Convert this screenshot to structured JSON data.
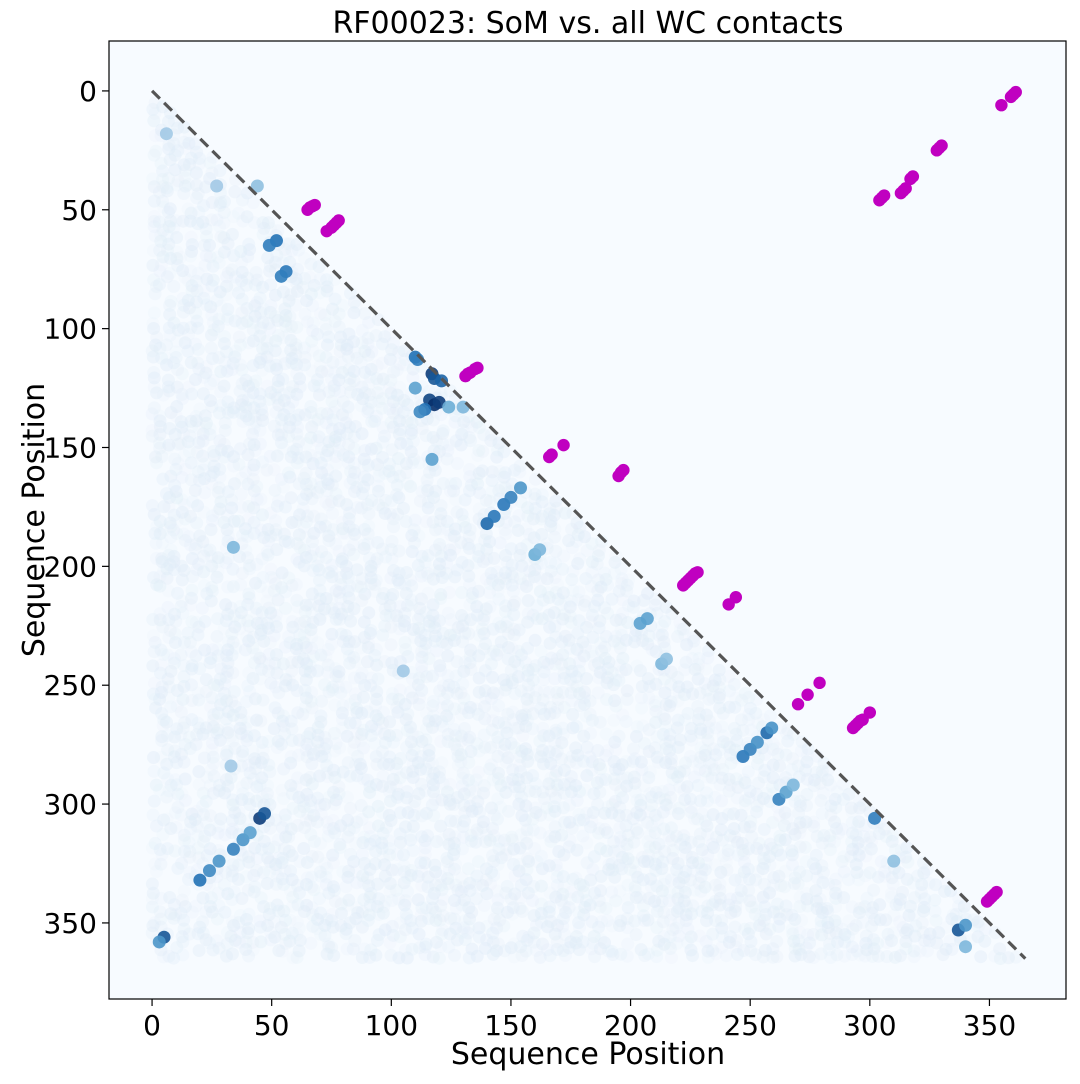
{
  "chart_data": {
    "type": "scatter",
    "title": "RF00023: SoM vs. all WC contacts",
    "xlabel": "Sequence Position",
    "ylabel": "Sequence Position",
    "xlim": [
      -18,
      382
    ],
    "ylim": [
      382,
      -21
    ],
    "y_inverted": true,
    "xticks": [
      0,
      50,
      100,
      150,
      200,
      250,
      300,
      350
    ],
    "yticks": [
      0,
      50,
      100,
      150,
      200,
      250,
      300,
      350
    ],
    "sequence_length": 365,
    "grid": false,
    "legend": false,
    "diagonal_line": {
      "x": [
        0,
        365
      ],
      "y": [
        0,
        365
      ],
      "style": "dashed",
      "color": "#555555"
    },
    "colors": {
      "background": "#f7fbff",
      "faint": "#deebf7",
      "medium": "#9ecae1",
      "strong": "#4292c6",
      "darkest": "#08306b",
      "annotation": "#c000c0"
    },
    "series": [
      {
        "colormap": "Blues",
        "points": [
          {
            "x": 52,
            "y": 63,
            "v": 0.75
          },
          {
            "x": 49,
            "y": 65,
            "v": 0.7
          },
          {
            "x": 56,
            "y": 76,
            "v": 0.72
          },
          {
            "x": 54,
            "y": 78,
            "v": 0.7
          },
          {
            "x": 44,
            "y": 40,
            "v": 0.4
          },
          {
            "x": 27,
            "y": 40,
            "v": 0.35
          },
          {
            "x": 110,
            "y": 112,
            "v": 0.75
          },
          {
            "x": 111,
            "y": 113,
            "v": 0.7
          },
          {
            "x": 117,
            "y": 119,
            "v": 0.95
          },
          {
            "x": 118,
            "y": 121,
            "v": 0.85
          },
          {
            "x": 121,
            "y": 122,
            "v": 0.8
          },
          {
            "x": 110,
            "y": 125,
            "v": 0.55
          },
          {
            "x": 116,
            "y": 130,
            "v": 0.92
          },
          {
            "x": 118,
            "y": 132,
            "v": 1.0
          },
          {
            "x": 120,
            "y": 131,
            "v": 0.95
          },
          {
            "x": 114,
            "y": 134,
            "v": 0.75
          },
          {
            "x": 112,
            "y": 135,
            "v": 0.65
          },
          {
            "x": 124,
            "y": 133,
            "v": 0.5
          },
          {
            "x": 130,
            "y": 133,
            "v": 0.45
          },
          {
            "x": 117,
            "y": 155,
            "v": 0.55
          },
          {
            "x": 140,
            "y": 182,
            "v": 0.78
          },
          {
            "x": 143,
            "y": 179,
            "v": 0.72
          },
          {
            "x": 147,
            "y": 174,
            "v": 0.72
          },
          {
            "x": 150,
            "y": 171,
            "v": 0.68
          },
          {
            "x": 154,
            "y": 167,
            "v": 0.6
          },
          {
            "x": 160,
            "y": 195,
            "v": 0.5
          },
          {
            "x": 162,
            "y": 193,
            "v": 0.45
          },
          {
            "x": 34,
            "y": 192,
            "v": 0.45
          },
          {
            "x": 204,
            "y": 224,
            "v": 0.55
          },
          {
            "x": 207,
            "y": 222,
            "v": 0.55
          },
          {
            "x": 213,
            "y": 241,
            "v": 0.45
          },
          {
            "x": 215,
            "y": 239,
            "v": 0.4
          },
          {
            "x": 247,
            "y": 280,
            "v": 0.72
          },
          {
            "x": 250,
            "y": 277,
            "v": 0.68
          },
          {
            "x": 253,
            "y": 274,
            "v": 0.62
          },
          {
            "x": 257,
            "y": 270,
            "v": 0.78
          },
          {
            "x": 259,
            "y": 268,
            "v": 0.62
          },
          {
            "x": 262,
            "y": 298,
            "v": 0.68
          },
          {
            "x": 265,
            "y": 295,
            "v": 0.55
          },
          {
            "x": 268,
            "y": 292,
            "v": 0.45
          },
          {
            "x": 302,
            "y": 306,
            "v": 0.7
          },
          {
            "x": 310,
            "y": 324,
            "v": 0.4
          },
          {
            "x": 20,
            "y": 332,
            "v": 0.75
          },
          {
            "x": 24,
            "y": 328,
            "v": 0.65
          },
          {
            "x": 28,
            "y": 324,
            "v": 0.6
          },
          {
            "x": 34,
            "y": 319,
            "v": 0.68
          },
          {
            "x": 38,
            "y": 315,
            "v": 0.6
          },
          {
            "x": 41,
            "y": 312,
            "v": 0.55
          },
          {
            "x": 45,
            "y": 306,
            "v": 0.95
          },
          {
            "x": 47,
            "y": 304,
            "v": 0.85
          },
          {
            "x": 5,
            "y": 356,
            "v": 0.85
          },
          {
            "x": 3,
            "y": 358,
            "v": 0.6
          },
          {
            "x": 337,
            "y": 353,
            "v": 0.85
          },
          {
            "x": 340,
            "y": 351,
            "v": 0.6
          },
          {
            "x": 340,
            "y": 360,
            "v": 0.45
          },
          {
            "x": 6,
            "y": 18,
            "v": 0.35
          },
          {
            "x": 105,
            "y": 244,
            "v": 0.35
          },
          {
            "x": 33,
            "y": 284,
            "v": 0.35
          }
        ]
      },
      {
        "name": "SoM",
        "color": "#c000c0",
        "points": [
          {
            "x": 65,
            "y": 50
          },
          {
            "x": 66,
            "y": 49
          },
          {
            "x": 67,
            "y": 48.5
          },
          {
            "x": 68,
            "y": 48
          },
          {
            "x": 73,
            "y": 59
          },
          {
            "x": 75,
            "y": 57.5
          },
          {
            "x": 76,
            "y": 56.5
          },
          {
            "x": 77,
            "y": 55.5
          },
          {
            "x": 78,
            "y": 54.5
          },
          {
            "x": 131,
            "y": 120
          },
          {
            "x": 132,
            "y": 119
          },
          {
            "x": 133,
            "y": 118.5
          },
          {
            "x": 135,
            "y": 117
          },
          {
            "x": 136,
            "y": 116.5
          },
          {
            "x": 166,
            "y": 154
          },
          {
            "x": 167,
            "y": 153
          },
          {
            "x": 172,
            "y": 149
          },
          {
            "x": 195,
            "y": 162
          },
          {
            "x": 196,
            "y": 160.5
          },
          {
            "x": 197,
            "y": 159.5
          },
          {
            "x": 222,
            "y": 208
          },
          {
            "x": 223,
            "y": 207
          },
          {
            "x": 224,
            "y": 206
          },
          {
            "x": 225,
            "y": 205
          },
          {
            "x": 226,
            "y": 204
          },
          {
            "x": 227,
            "y": 203
          },
          {
            "x": 228,
            "y": 202.5
          },
          {
            "x": 241,
            "y": 216
          },
          {
            "x": 244,
            "y": 213
          },
          {
            "x": 270,
            "y": 258
          },
          {
            "x": 274,
            "y": 254
          },
          {
            "x": 279,
            "y": 249
          },
          {
            "x": 293,
            "y": 268
          },
          {
            "x": 294,
            "y": 267
          },
          {
            "x": 295,
            "y": 266
          },
          {
            "x": 296,
            "y": 265
          },
          {
            "x": 297,
            "y": 264.5
          },
          {
            "x": 300,
            "y": 261.5
          },
          {
            "x": 304,
            "y": 46
          },
          {
            "x": 305,
            "y": 45
          },
          {
            "x": 306,
            "y": 44
          },
          {
            "x": 313,
            "y": 43
          },
          {
            "x": 314,
            "y": 42
          },
          {
            "x": 315,
            "y": 41
          },
          {
            "x": 317,
            "y": 37
          },
          {
            "x": 318,
            "y": 36
          },
          {
            "x": 328,
            "y": 25
          },
          {
            "x": 329,
            "y": 24
          },
          {
            "x": 330,
            "y": 23
          },
          {
            "x": 349,
            "y": 341
          },
          {
            "x": 350,
            "y": 340
          },
          {
            "x": 351,
            "y": 339
          },
          {
            "x": 352,
            "y": 338
          },
          {
            "x": 353,
            "y": 337
          },
          {
            "x": 355,
            "y": 6
          },
          {
            "x": 359,
            "y": 2.5
          },
          {
            "x": 360,
            "y": 1.5
          },
          {
            "x": 361,
            "y": 0.5
          }
        ]
      }
    ]
  }
}
